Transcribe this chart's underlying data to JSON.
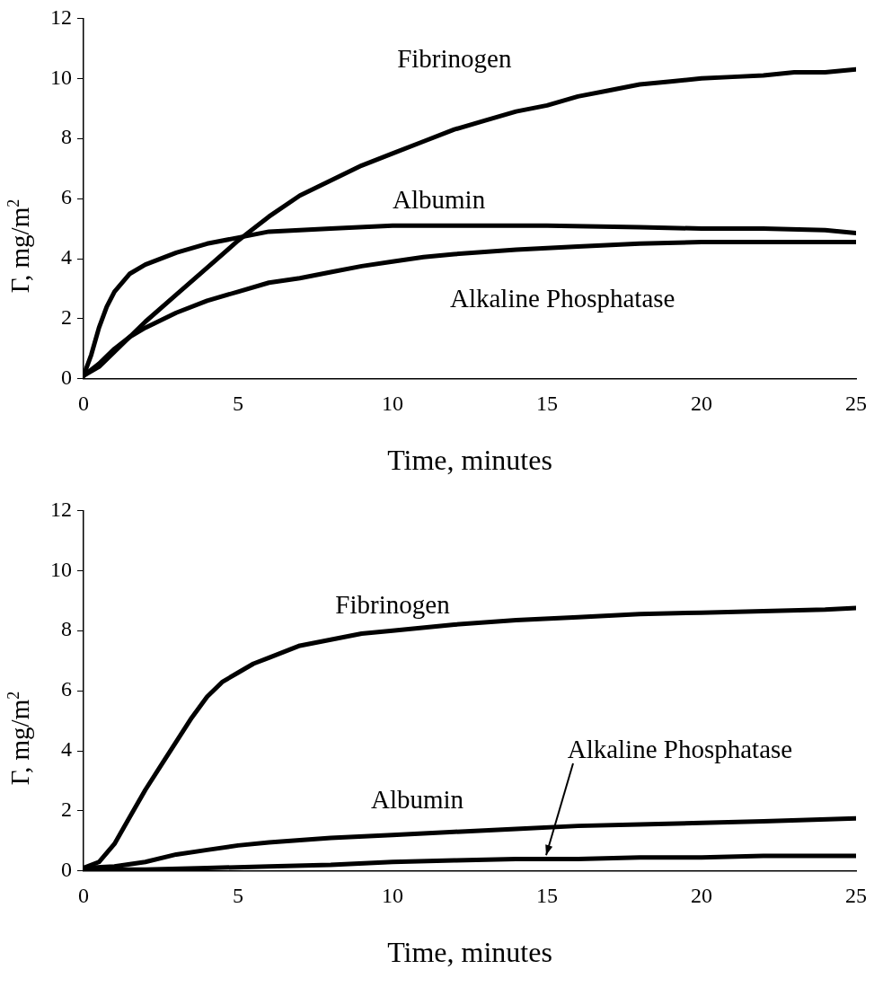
{
  "chart_data": [
    {
      "type": "line",
      "xlabel": "Time, minutes",
      "ylabel": "Γ, mg/m$^{2}$",
      "xlim": [
        0,
        25
      ],
      "xticks": [
        0,
        5,
        10,
        15,
        20,
        25
      ],
      "ylim": [
        0,
        12
      ],
      "yticks": [
        0,
        2,
        4,
        6,
        8,
        10,
        12
      ],
      "series": [
        {
          "name": "Fibrinogen",
          "color": "#000000",
          "x": [
            0,
            0.5,
            1,
            1.5,
            2,
            3,
            4,
            5,
            6,
            7,
            8,
            9,
            10,
            11,
            12,
            13,
            14,
            15,
            16,
            17,
            18,
            19,
            20,
            21,
            22,
            23,
            24,
            25
          ],
          "values": [
            0.1,
            0.4,
            0.9,
            1.4,
            1.9,
            2.8,
            3.7,
            4.6,
            5.4,
            6.1,
            6.6,
            7.1,
            7.5,
            7.9,
            8.3,
            8.6,
            8.9,
            9.1,
            9.4,
            9.6,
            9.8,
            9.9,
            10.0,
            10.05,
            10.1,
            10.2,
            10.2,
            10.3
          ]
        },
        {
          "name": "Albumin",
          "color": "#000000",
          "x": [
            0,
            0.25,
            0.5,
            0.75,
            1,
            1.5,
            2,
            3,
            4,
            5,
            6,
            8,
            10,
            12,
            15,
            18,
            20,
            22,
            24,
            25
          ],
          "values": [
            0.1,
            0.8,
            1.7,
            2.4,
            2.9,
            3.5,
            3.8,
            4.2,
            4.5,
            4.7,
            4.9,
            5.0,
            5.1,
            5.1,
            5.1,
            5.05,
            5.0,
            5.0,
            4.95,
            4.85
          ]
        },
        {
          "name": "Alkaline Phosphatase",
          "color": "#000000",
          "x": [
            0,
            0.5,
            1,
            1.5,
            2,
            3,
            4,
            5,
            6,
            7,
            8,
            9,
            10,
            11,
            12,
            14,
            16,
            18,
            20,
            22,
            25
          ],
          "values": [
            0.1,
            0.5,
            1.0,
            1.4,
            1.7,
            2.2,
            2.6,
            2.9,
            3.2,
            3.35,
            3.55,
            3.75,
            3.9,
            4.05,
            4.15,
            4.3,
            4.4,
            4.5,
            4.55,
            4.55,
            4.55
          ]
        }
      ]
    },
    {
      "type": "line",
      "xlabel": "Time, minutes",
      "ylabel": "Γ, mg/m$^{2}$",
      "xlim": [
        0,
        25
      ],
      "xticks": [
        0,
        5,
        10,
        15,
        20,
        25
      ],
      "ylim": [
        0,
        12
      ],
      "yticks": [
        0,
        2,
        4,
        6,
        8,
        10,
        12
      ],
      "series": [
        {
          "name": "Fibrinogen",
          "color": "#000000",
          "x": [
            0,
            0.5,
            1,
            1.5,
            2,
            2.5,
            3,
            3.5,
            4,
            4.5,
            5,
            5.5,
            6,
            7,
            8,
            9,
            10,
            12,
            14,
            16,
            18,
            20,
            22,
            24,
            25
          ],
          "values": [
            0.1,
            0.3,
            0.9,
            1.8,
            2.7,
            3.5,
            4.3,
            5.1,
            5.8,
            6.3,
            6.6,
            6.9,
            7.1,
            7.5,
            7.7,
            7.9,
            8.0,
            8.2,
            8.35,
            8.45,
            8.55,
            8.6,
            8.65,
            8.7,
            8.75
          ]
        },
        {
          "name": "Albumin",
          "color": "#000000",
          "x": [
            0,
            1,
            2,
            3,
            4,
            5,
            6,
            8,
            10,
            12,
            14,
            16,
            18,
            20,
            22,
            25
          ],
          "values": [
            0.1,
            0.15,
            0.3,
            0.55,
            0.7,
            0.85,
            0.95,
            1.1,
            1.2,
            1.3,
            1.4,
            1.5,
            1.55,
            1.6,
            1.65,
            1.75
          ]
        },
        {
          "name": "Alkaline Phosphatase",
          "color": "#000000",
          "x": [
            0,
            2,
            4,
            6,
            8,
            10,
            12,
            14,
            16,
            18,
            20,
            22,
            25
          ],
          "values": [
            0.05,
            0.05,
            0.1,
            0.15,
            0.2,
            0.3,
            0.35,
            0.4,
            0.4,
            0.45,
            0.45,
            0.5,
            0.5
          ]
        }
      ]
    }
  ]
}
